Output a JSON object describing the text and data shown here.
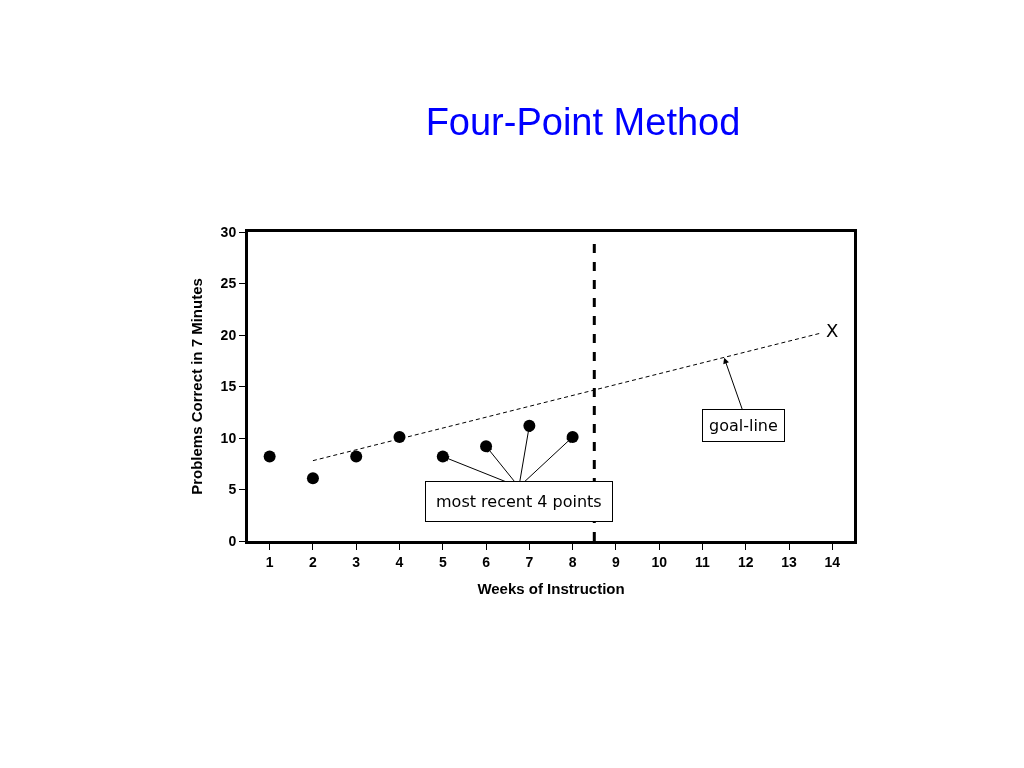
{
  "chart_data": {
    "type": "scatter",
    "title": "Four-Point Method",
    "xlabel": "Weeks of Instruction",
    "ylabel": "Problems Correct in 7 Minutes",
    "series": [
      {
        "color": "#000000",
        "marker": "circle",
        "x": [
          1,
          2,
          3,
          4,
          5,
          6,
          7,
          8
        ],
        "values": [
          8.2,
          6.1,
          8.2,
          10.1,
          8.2,
          9.2,
          11.2,
          10.1
        ]
      },
      {
        "type": "line",
        "color": "#000000",
        "line_style": "dashed",
        "marker": "none",
        "x": [
          2,
          13.75
        ],
        "values": [
          7.8,
          20.2
        ]
      }
    ],
    "xlim": [
      0.5,
      14.5
    ],
    "xticks": [
      1,
      2,
      3,
      4,
      5,
      6,
      7,
      8,
      9,
      10,
      11,
      12,
      13,
      14
    ],
    "ylim": [
      0,
      30
    ],
    "yticks": [
      0,
      5,
      10,
      15,
      20,
      25,
      30
    ],
    "ref_lines": [
      {
        "axis": "x",
        "value": 8.5,
        "color": "#000000",
        "line_style": "dashed"
      }
    ],
    "annotations": [
      "X",
      {
        "text": "most recent 4 points",
        "x": 7,
        "y": 11.2
      },
      {
        "text": "goal-line",
        "x": 11.5,
        "y": 17.8
      }
    ],
    "tick_labels": true
  }
}
